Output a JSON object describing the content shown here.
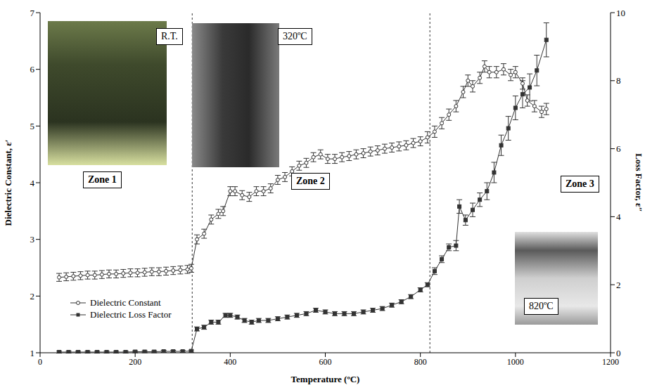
{
  "chart_data": {
    "type": "scatter",
    "xlabel": "Temperature (ºC)",
    "ylabel": "Dielectric Constant,  ε′",
    "y2label": "Loss Factor, ε″",
    "xlim": [
      0,
      1200
    ],
    "xticks": [
      0,
      200,
      400,
      600,
      800,
      1000,
      1200
    ],
    "ylim": [
      1,
      7
    ],
    "yticks": [
      1,
      2,
      3,
      4,
      5,
      6,
      7
    ],
    "y2lim": [
      0,
      10
    ],
    "y2ticks": [
      0,
      2,
      4,
      6,
      8,
      10
    ],
    "legend": "lower left",
    "zone_boundaries": [
      320,
      820
    ],
    "annotations": [
      "R.T.",
      "Zone 1",
      "320ºC",
      "Zone 2",
      "Zone 3",
      "820ºC"
    ],
    "series": [
      {
        "name": "Dielectric Constant",
        "color": "#333333",
        "marker": "circle",
        "line_style": "solid",
        "x": [
          40,
          55,
          70,
          85,
          100,
          115,
          130,
          145,
          160,
          175,
          190,
          205,
          220,
          235,
          250,
          265,
          280,
          295,
          310,
          318,
          330,
          345,
          360,
          375,
          385,
          400,
          410,
          425,
          440,
          455,
          470,
          485,
          500,
          515,
          530,
          545,
          560,
          575,
          590,
          605,
          620,
          635,
          650,
          665,
          680,
          695,
          710,
          725,
          740,
          755,
          770,
          785,
          800,
          815,
          830,
          845,
          860,
          875,
          890,
          900,
          910,
          925,
          935,
          945,
          960,
          975,
          990,
          1000,
          1015,
          1025,
          1040,
          1055,
          1065
        ],
        "values": [
          2.33,
          2.34,
          2.35,
          2.36,
          2.37,
          2.37,
          2.38,
          2.39,
          2.39,
          2.4,
          2.41,
          2.41,
          2.42,
          2.43,
          2.43,
          2.44,
          2.45,
          2.46,
          2.47,
          2.49,
          3.0,
          3.1,
          3.35,
          3.45,
          3.5,
          3.85,
          3.85,
          3.78,
          3.75,
          3.85,
          3.85,
          3.9,
          4.05,
          4.1,
          4.2,
          4.3,
          4.35,
          4.45,
          4.5,
          4.42,
          4.42,
          4.45,
          4.47,
          4.5,
          4.52,
          4.55,
          4.57,
          4.6,
          4.62,
          4.64,
          4.66,
          4.7,
          4.73,
          4.8,
          4.9,
          5.05,
          5.2,
          5.35,
          5.6,
          5.8,
          5.7,
          5.85,
          6.05,
          5.95,
          5.95,
          6.0,
          5.9,
          5.95,
          5.75,
          5.45,
          5.35,
          5.25,
          5.3
        ],
        "errors": [
          0.07,
          0.07,
          0.07,
          0.07,
          0.07,
          0.07,
          0.07,
          0.07,
          0.07,
          0.07,
          0.07,
          0.07,
          0.07,
          0.07,
          0.07,
          0.07,
          0.07,
          0.07,
          0.07,
          0.07,
          0.08,
          0.08,
          0.08,
          0.08,
          0.08,
          0.08,
          0.08,
          0.08,
          0.08,
          0.08,
          0.08,
          0.08,
          0.08,
          0.08,
          0.08,
          0.08,
          0.08,
          0.08,
          0.08,
          0.08,
          0.08,
          0.08,
          0.08,
          0.08,
          0.08,
          0.08,
          0.08,
          0.08,
          0.08,
          0.08,
          0.08,
          0.08,
          0.08,
          0.1,
          0.1,
          0.1,
          0.1,
          0.1,
          0.1,
          0.1,
          0.1,
          0.1,
          0.1,
          0.1,
          0.1,
          0.1,
          0.1,
          0.1,
          0.1,
          0.1,
          0.1,
          0.1,
          0.1
        ]
      },
      {
        "name": "Dielectric Loss Factor",
        "color": "#333333",
        "marker": "square",
        "line_style": "solid",
        "axis": "y2",
        "x": [
          40,
          60,
          80,
          100,
          120,
          140,
          160,
          180,
          200,
          220,
          240,
          260,
          280,
          300,
          318,
          330,
          345,
          360,
          375,
          390,
          400,
          415,
          430,
          445,
          460,
          480,
          500,
          520,
          540,
          560,
          580,
          600,
          620,
          640,
          660,
          680,
          700,
          720,
          740,
          760,
          780,
          800,
          815,
          830,
          845,
          860,
          875,
          882,
          895,
          910,
          925,
          940,
          955,
          970,
          985,
          1000,
          1015,
          1030,
          1045,
          1065
        ],
        "values": [
          0.02,
          0.02,
          0.02,
          0.02,
          0.02,
          0.02,
          0.02,
          0.02,
          0.03,
          0.03,
          0.03,
          0.04,
          0.04,
          0.04,
          0.05,
          0.7,
          0.75,
          0.9,
          0.9,
          1.1,
          1.1,
          1.05,
          0.95,
          0.9,
          0.95,
          0.95,
          1.0,
          1.05,
          1.1,
          1.15,
          1.25,
          1.2,
          1.15,
          1.15,
          1.15,
          1.2,
          1.25,
          1.3,
          1.4,
          1.5,
          1.65,
          1.85,
          2.0,
          2.4,
          2.75,
          3.1,
          3.15,
          4.3,
          3.9,
          4.2,
          4.5,
          4.75,
          5.3,
          6.1,
          6.6,
          7.2,
          7.6,
          7.8,
          8.3,
          9.2
        ],
        "errors": [
          0.03,
          0.03,
          0.03,
          0.03,
          0.03,
          0.03,
          0.03,
          0.03,
          0.03,
          0.03,
          0.03,
          0.03,
          0.03,
          0.03,
          0.03,
          0.06,
          0.06,
          0.06,
          0.06,
          0.06,
          0.06,
          0.06,
          0.06,
          0.06,
          0.06,
          0.06,
          0.06,
          0.06,
          0.06,
          0.06,
          0.06,
          0.06,
          0.06,
          0.06,
          0.06,
          0.06,
          0.06,
          0.06,
          0.06,
          0.06,
          0.06,
          0.06,
          0.06,
          0.1,
          0.1,
          0.1,
          0.15,
          0.2,
          0.15,
          0.2,
          0.2,
          0.25,
          0.3,
          0.3,
          0.35,
          0.35,
          0.4,
          0.4,
          0.45,
          0.5
        ]
      }
    ]
  }
}
